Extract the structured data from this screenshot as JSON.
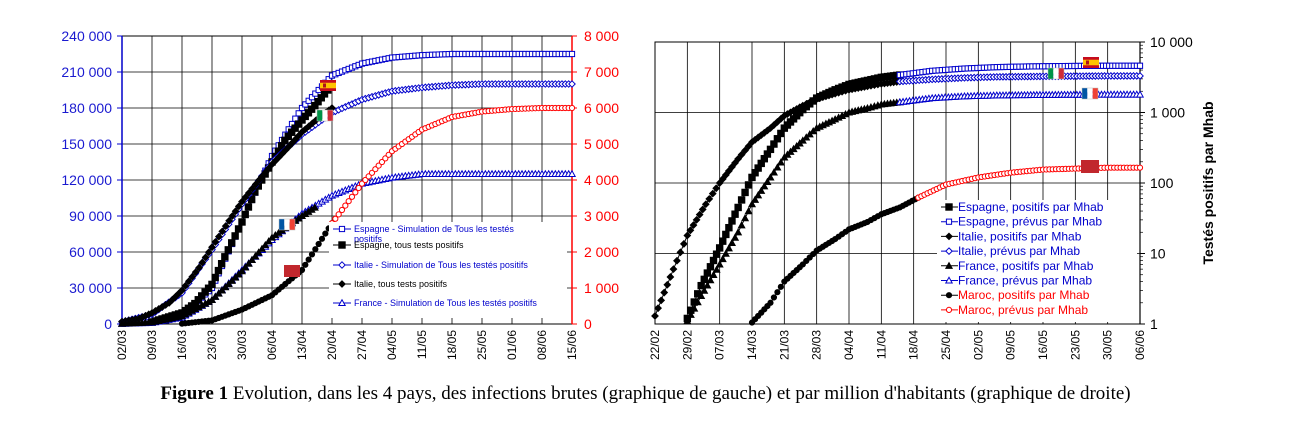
{
  "caption": {
    "label": "Figure 1",
    "text": " Evolution, dans les 4 pays, des infections brutes (graphique de gauche) et par million d'habitants (graphique de droite)"
  },
  "colors": {
    "blue": "#0000cc",
    "red": "#ff0000",
    "black": "#000000",
    "bluePoint": "#1a3fd0"
  },
  "chart_data": [
    {
      "type": "line",
      "id": "left",
      "x_unit": "date (jj/mm, 2020)",
      "x_ticks": [
        "02/03",
        "09/03",
        "16/03",
        "23/03",
        "30/03",
        "06/04",
        "13/04",
        "20/04",
        "27/04",
        "04/05",
        "11/05",
        "18/05",
        "25/05",
        "01/06",
        "08/06",
        "15/06"
      ],
      "x_range": [
        "02/03",
        "15/06"
      ],
      "y_left": {
        "ticks": [
          "0",
          "30 000",
          "60 000",
          "90 000",
          "120 000",
          "150 000",
          "180 000",
          "210 000",
          "240 000"
        ],
        "range": [
          0,
          240000
        ]
      },
      "y_right": {
        "ticks": [
          "0",
          "1 000",
          "2 000",
          "3 000",
          "4 000",
          "5 000",
          "6 000",
          "7 000",
          "8 000"
        ],
        "range": [
          0,
          8000
        ]
      },
      "grid": true,
      "legend_position": "lower-right-inside",
      "series": [
        {
          "name": "Espagne - Simulation de Tous les testés positifs",
          "axis": "left",
          "marker": "open-square",
          "color": "#0000cc",
          "points": [
            [
              "02/03",
              500
            ],
            [
              "09/03",
              1500
            ],
            [
              "16/03",
              6000
            ],
            [
              "23/03",
              30000
            ],
            [
              "30/03",
              85000
            ],
            [
              "06/04",
              140000
            ],
            [
              "13/04",
              180000
            ],
            [
              "20/04",
              207000
            ],
            [
              "27/04",
              217000
            ],
            [
              "04/05",
              222000
            ],
            [
              "11/05",
              224000
            ],
            [
              "18/05",
              225000
            ],
            [
              "25/05",
              225000
            ],
            [
              "01/06",
              225000
            ],
            [
              "08/06",
              225000
            ],
            [
              "15/06",
              225000
            ]
          ]
        },
        {
          "name": "Espagne, tous tests positifs",
          "axis": "left",
          "marker": "filled-square",
          "color": "#000000",
          "points": [
            [
              "09/03",
              1700
            ],
            [
              "16/03",
              9200
            ],
            [
              "19/03",
              17000
            ],
            [
              "23/03",
              33000
            ],
            [
              "26/03",
              56000
            ],
            [
              "30/03",
              85000
            ],
            [
              "02/04",
              110000
            ],
            [
              "06/04",
              135000
            ],
            [
              "09/04",
              153000
            ],
            [
              "13/04",
              170000
            ],
            [
              "16/04",
              182000
            ],
            [
              "19/04",
              195000
            ]
          ]
        },
        {
          "name": "Italie - Simulation de Tous les testés positifs",
          "axis": "left",
          "marker": "open-diamond",
          "color": "#0000cc",
          "points": [
            [
              "02/03",
              1800
            ],
            [
              "09/03",
              8000
            ],
            [
              "16/03",
              26000
            ],
            [
              "23/03",
              62000
            ],
            [
              "30/03",
              100000
            ],
            [
              "06/04",
              135000
            ],
            [
              "13/04",
              158000
            ],
            [
              "20/04",
              176000
            ],
            [
              "27/04",
              187000
            ],
            [
              "04/05",
              194000
            ],
            [
              "11/05",
              197000
            ],
            [
              "18/05",
              199000
            ],
            [
              "25/05",
              200000
            ],
            [
              "01/06",
              200000
            ],
            [
              "08/06",
              200000
            ],
            [
              "15/06",
              200000
            ]
          ]
        },
        {
          "name": "Italie, tous tests positifs",
          "axis": "left",
          "marker": "filled-diamond",
          "color": "#000000",
          "points": [
            [
              "02/03",
              2000
            ],
            [
              "06/03",
              4600
            ],
            [
              "09/03",
              9200
            ],
            [
              "13/03",
              17600
            ],
            [
              "16/03",
              28000
            ],
            [
              "20/03",
              47000
            ],
            [
              "23/03",
              64000
            ],
            [
              "27/03",
              86000
            ],
            [
              "30/03",
              102000
            ],
            [
              "03/04",
              120000
            ],
            [
              "06/04",
              133000
            ],
            [
              "10/04",
              148000
            ],
            [
              "13/04",
              160000
            ],
            [
              "17/04",
              172000
            ],
            [
              "20/04",
              180000
            ]
          ]
        },
        {
          "name": "France - Simulation de Tous les testés positifs",
          "axis": "left",
          "marker": "open-triangle",
          "color": "#0000cc",
          "points": [
            [
              "02/03",
              200
            ],
            [
              "09/03",
              1000
            ],
            [
              "16/03",
              5500
            ],
            [
              "23/03",
              20000
            ],
            [
              "30/03",
              45000
            ],
            [
              "06/04",
              70000
            ],
            [
              "13/04",
              92000
            ],
            [
              "20/04",
              107000
            ],
            [
              "27/04",
              117000
            ],
            [
              "04/05",
              122000
            ],
            [
              "11/05",
              125000
            ],
            [
              "18/05",
              125000
            ],
            [
              "25/05",
              125000
            ],
            [
              "01/06",
              125000
            ],
            [
              "08/06",
              125000
            ],
            [
              "15/06",
              125000
            ]
          ]
        },
        {
          "name": "France",
          "axis": "left",
          "marker": "filled-triangle",
          "color": "#000000",
          "points": [
            [
              "02/03",
              300
            ],
            [
              "09/03",
              1400
            ],
            [
              "16/03",
              6600
            ],
            [
              "23/03",
              20000
            ],
            [
              "30/03",
              44000
            ],
            [
              "06/04",
              72000
            ],
            [
              "13/04",
              90000
            ],
            [
              "16/04",
              97000
            ]
          ]
        },
        {
          "name": "Maroc",
          "axis": "right",
          "marker": "filled-circle",
          "color": "#000000",
          "points": [
            [
              "16/03",
              10
            ],
            [
              "23/03",
              100
            ],
            [
              "30/03",
              400
            ],
            [
              "06/04",
              800
            ],
            [
              "13/04",
              1500
            ],
            [
              "20/04",
              2800
            ]
          ]
        },
        {
          "name": "Maroc",
          "axis": "right",
          "marker": "open-circle",
          "color": "#ff0000",
          "points": [
            [
              "20/04",
              2800
            ],
            [
              "27/04",
              3900
            ],
            [
              "04/05",
              4800
            ],
            [
              "11/05",
              5400
            ],
            [
              "18/05",
              5750
            ],
            [
              "25/05",
              5900
            ],
            [
              "01/06",
              5970
            ],
            [
              "08/06",
              6000
            ],
            [
              "15/06",
              6000
            ]
          ]
        }
      ]
    },
    {
      "type": "line",
      "id": "right",
      "x_unit": "date (jj/mm, 2020)",
      "x_ticks": [
        "22/02",
        "29/02",
        "07/03",
        "14/03",
        "21/03",
        "28/03",
        "04/04",
        "11/04",
        "18/04",
        "25/04",
        "02/05",
        "09/05",
        "16/05",
        "23/05",
        "30/05",
        "06/06"
      ],
      "x_range": [
        "22/02",
        "06/06"
      ],
      "y_scale": "log",
      "y_range": [
        1,
        10000
      ],
      "y_ticks": [
        "1",
        "10",
        "100",
        "1 000",
        "10 000"
      ],
      "ylabel": "Testés positifs par Mhab",
      "grid": true,
      "legend_position": "lower-right-inside",
      "series": [
        {
          "name": "Espagne, positifs par Mhab",
          "color": "#000000",
          "marker": "filled-square",
          "points": [
            [
              "29/02",
              1.2
            ],
            [
              "03/03",
              3.5
            ],
            [
              "07/03",
              12
            ],
            [
              "11/03",
              45
            ],
            [
              "14/03",
              120
            ],
            [
              "18/03",
              300
            ],
            [
              "21/03",
              600
            ],
            [
              "25/03",
              1100
            ],
            [
              "28/03",
              1600
            ],
            [
              "01/04",
              2100
            ],
            [
              "04/04",
              2500
            ],
            [
              "08/04",
              2850
            ],
            [
              "11/04",
              3150
            ],
            [
              "15/04",
              3400
            ]
          ]
        },
        {
          "name": "Espagne, prévus par Mhab",
          "color": "#0000cc",
          "marker": "open-square",
          "points": [
            [
              "15/04",
              3400
            ],
            [
              "22/04",
              3900
            ],
            [
              "29/04",
              4200
            ],
            [
              "06/05",
              4400
            ],
            [
              "13/05",
              4500
            ],
            [
              "20/05",
              4550
            ],
            [
              "27/05",
              4600
            ],
            [
              "06/06",
              4600
            ]
          ]
        },
        {
          "name": "Italie, positifs par Mhab",
          "color": "#000000",
          "marker": "filled-diamond",
          "points": [
            [
              "22/02",
              1.3
            ],
            [
              "26/02",
              6
            ],
            [
              "29/02",
              18
            ],
            [
              "04/03",
              50
            ],
            [
              "07/03",
              100
            ],
            [
              "11/03",
              220
            ],
            [
              "14/03",
              380
            ],
            [
              "18/03",
              600
            ],
            [
              "21/03",
              900
            ],
            [
              "25/03",
              1250
            ],
            [
              "28/03",
              1550
            ],
            [
              "01/04",
              1850
            ],
            [
              "04/04",
              2100
            ],
            [
              "08/04",
              2350
            ],
            [
              "11/04",
              2550
            ],
            [
              "15/04",
              2750
            ]
          ]
        },
        {
          "name": "Italie, prévus par Mhab",
          "color": "#0000cc",
          "marker": "open-diamond",
          "points": [
            [
              "15/04",
              2750
            ],
            [
              "22/04",
              2950
            ],
            [
              "29/04",
              3100
            ],
            [
              "06/05",
              3200
            ],
            [
              "16/05",
              3250
            ],
            [
              "30/05",
              3300
            ],
            [
              "06/06",
              3300
            ]
          ]
        },
        {
          "name": "France, positifs par Mhab",
          "color": "#000000",
          "marker": "filled-triangle",
          "points": [
            [
              "29/02",
              1.1
            ],
            [
              "03/03",
              2.5
            ],
            [
              "07/03",
              7
            ],
            [
              "11/03",
              20
            ],
            [
              "14/03",
              50
            ],
            [
              "18/03",
              120
            ],
            [
              "21/03",
              230
            ],
            [
              "25/03",
              400
            ],
            [
              "28/03",
              600
            ],
            [
              "01/04",
              800
            ],
            [
              "04/04",
              1000
            ],
            [
              "08/04",
              1150
            ],
            [
              "11/04",
              1300
            ],
            [
              "15/04",
              1400
            ]
          ]
        },
        {
          "name": "France, prévus par Mhab",
          "color": "#0000cc",
          "marker": "open-triangle",
          "points": [
            [
              "15/04",
              1400
            ],
            [
              "22/04",
              1600
            ],
            [
              "29/04",
              1700
            ],
            [
              "06/05",
              1750
            ],
            [
              "16/05",
              1780
            ],
            [
              "30/05",
              1800
            ],
            [
              "06/06",
              1800
            ]
          ]
        },
        {
          "name": "Maroc, positifs par Mhab",
          "color": "#000000",
          "marker": "filled-circle",
          "points": [
            [
              "14/03",
              1.05
            ],
            [
              "18/03",
              2
            ],
            [
              "21/03",
              4
            ],
            [
              "25/03",
              7
            ],
            [
              "28/03",
              11
            ],
            [
              "01/04",
              16
            ],
            [
              "04/04",
              22
            ],
            [
              "08/04",
              28
            ],
            [
              "11/04",
              36
            ],
            [
              "15/04",
              45
            ],
            [
              "19/04",
              62
            ]
          ]
        },
        {
          "name": "Maroc, prévus par Mhab",
          "color": "#ff0000",
          "marker": "open-circle",
          "points": [
            [
              "19/04",
              62
            ],
            [
              "25/04",
              95
            ],
            [
              "02/05",
              120
            ],
            [
              "09/05",
              140
            ],
            [
              "16/05",
              155
            ],
            [
              "23/05",
              160
            ],
            [
              "30/05",
              165
            ],
            [
              "06/06",
              165
            ]
          ]
        }
      ]
    }
  ]
}
